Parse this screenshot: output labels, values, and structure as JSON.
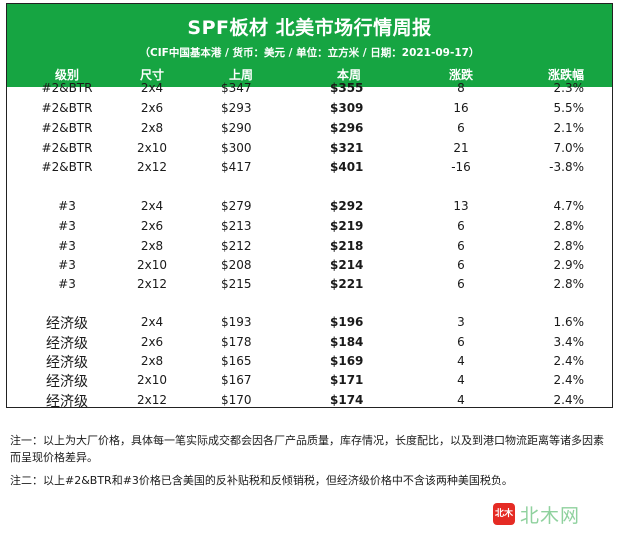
{
  "header": {
    "title": "SPF板材 北美市场行情周报",
    "subtitle": "（CIF中国基本港 / 货币：美元 / 单位：立方米 / 日期：2021-09-17）",
    "columns": [
      "级别",
      "尺寸",
      "上周",
      "本周",
      "涨跌",
      "涨跌幅"
    ]
  },
  "rows": [
    {
      "grade": "#2&BTR",
      "size": "2x4",
      "prev": "$347",
      "curr": "$355",
      "chg": "8",
      "pct": "2.3%"
    },
    {
      "grade": "#2&BTR",
      "size": "2x6",
      "prev": "$293",
      "curr": "$309",
      "chg": "16",
      "pct": "5.5%"
    },
    {
      "grade": "#2&BTR",
      "size": "2x8",
      "prev": "$290",
      "curr": "$296",
      "chg": "6",
      "pct": "2.1%"
    },
    {
      "grade": "#2&BTR",
      "size": "2x10",
      "prev": "$300",
      "curr": "$321",
      "chg": "21",
      "pct": "7.0%"
    },
    {
      "grade": "#2&BTR",
      "size": "2x12",
      "prev": "$417",
      "curr": "$401",
      "chg": "-16",
      "pct": "-3.8%"
    },
    {
      "grade": "#3",
      "size": "2x4",
      "prev": "$279",
      "curr": "$292",
      "chg": "13",
      "pct": "4.7%"
    },
    {
      "grade": "#3",
      "size": "2x6",
      "prev": "$213",
      "curr": "$219",
      "chg": "6",
      "pct": "2.8%"
    },
    {
      "grade": "#3",
      "size": "2x8",
      "prev": "$212",
      "curr": "$218",
      "chg": "6",
      "pct": "2.8%"
    },
    {
      "grade": "#3",
      "size": "2x10",
      "prev": "$208",
      "curr": "$214",
      "chg": "6",
      "pct": "2.9%"
    },
    {
      "grade": "#3",
      "size": "2x12",
      "prev": "$215",
      "curr": "$221",
      "chg": "6",
      "pct": "2.8%"
    },
    {
      "grade": "经济级",
      "size": "2x4",
      "prev": "$193",
      "curr": "$196",
      "chg": "3",
      "pct": "1.6%"
    },
    {
      "grade": "经济级",
      "size": "2x6",
      "prev": "$178",
      "curr": "$184",
      "chg": "6",
      "pct": "3.4%"
    },
    {
      "grade": "经济级",
      "size": "2x8",
      "prev": "$165",
      "curr": "$169",
      "chg": "4",
      "pct": "2.4%"
    },
    {
      "grade": "经济级",
      "size": "2x10",
      "prev": "$167",
      "curr": "$171",
      "chg": "4",
      "pct": "2.4%"
    },
    {
      "grade": "经济级",
      "size": "2x12",
      "prev": "$170",
      "curr": "$174",
      "chg": "4",
      "pct": "2.4%"
    }
  ],
  "notes": {
    "note1": "注一：以上为大厂价格，具体每一笔实际成交都会因各厂产品质量，库存情况，长度配比，以及到港口物流距离等诸多因素而呈现价格差异。",
    "note2": "注二：以上#2&BTR和#3价格已含美国的反补贴税和反倾销税，但经济级价格中不含该两种美国税负。"
  },
  "brand": {
    "badge": "北木",
    "logo_text": "北木网"
  },
  "colors": {
    "header_bg": "#16a542",
    "header_text": "#ffffff",
    "logo_red": "#e52b24",
    "logo_text": "#8fd19e"
  }
}
